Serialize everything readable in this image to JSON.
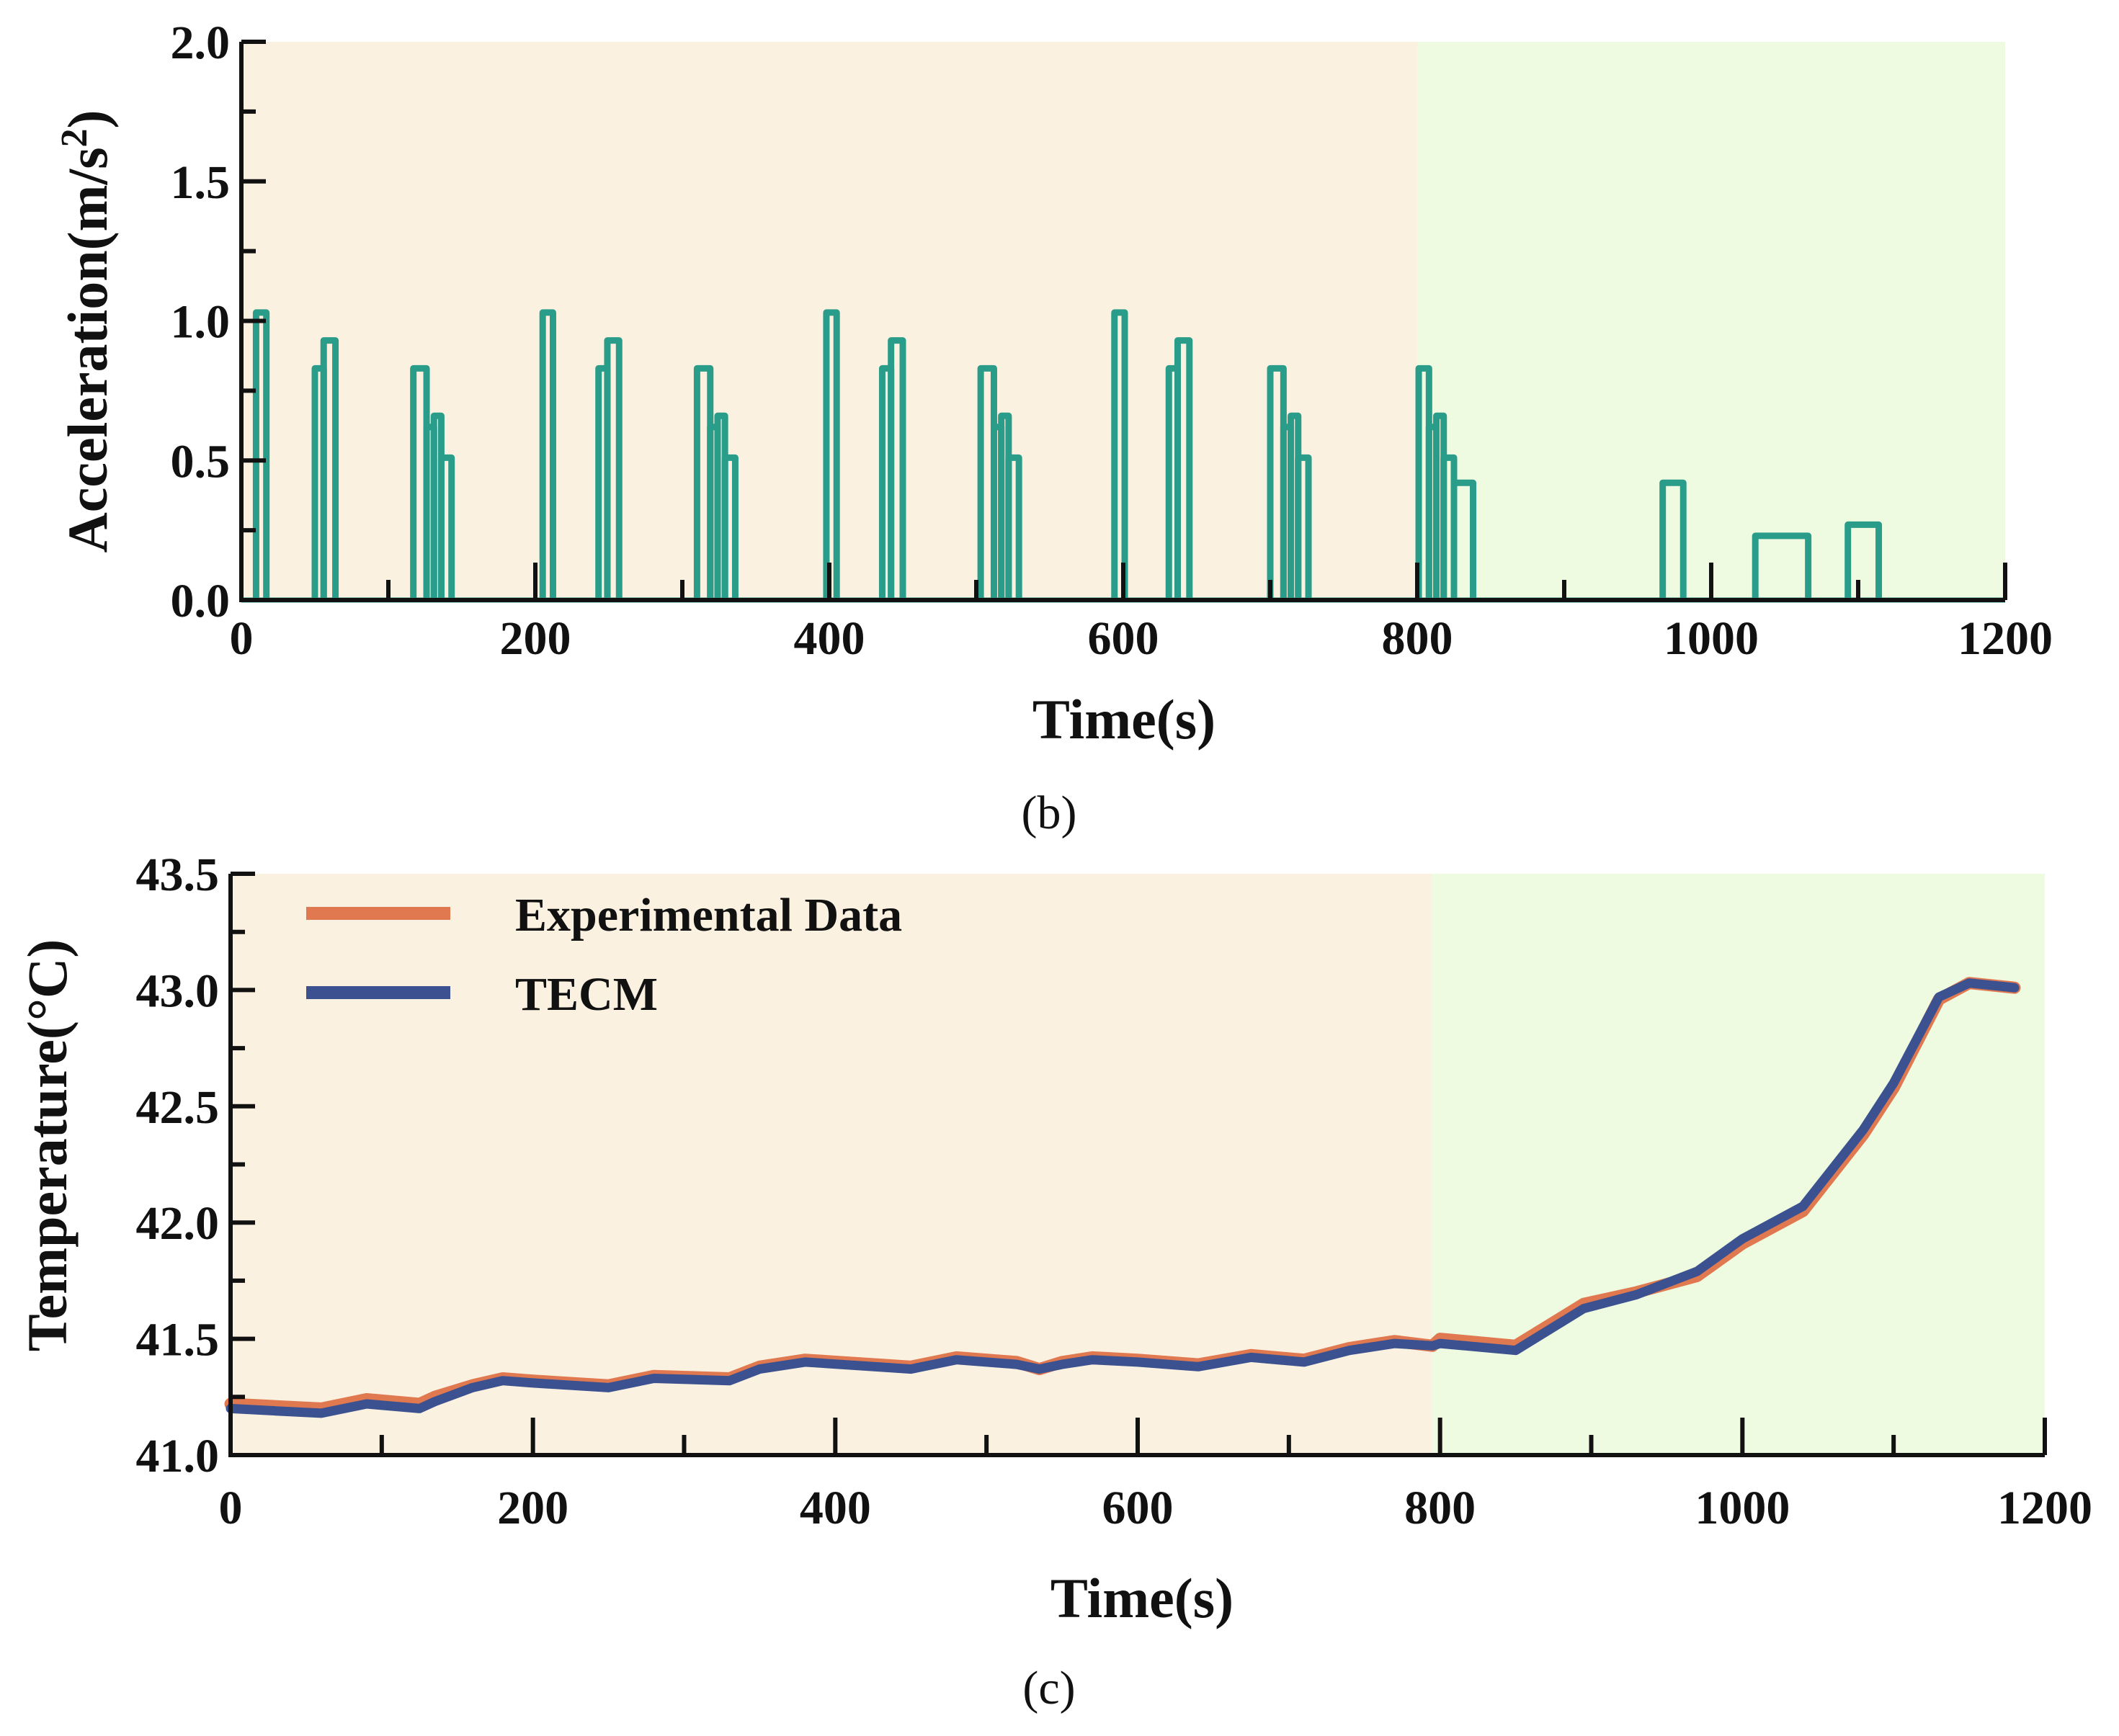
{
  "colors": {
    "region_a": "#fbf1e0",
    "region_b": "#eefbe1",
    "acceleration": "#2a9d8a",
    "experimental": "#e07850",
    "tecm": "#3c5290",
    "axis": "#111111"
  },
  "chart_data": [
    {
      "id": "acceleration-chart",
      "type": "line",
      "panel_label": "(b)",
      "title": "",
      "xlabel": "Time(s)",
      "ylabel_main": "Acceleration(m/s",
      "ylabel_sup": "2",
      "ylabel_tail": ")",
      "xlim": [
        0,
        1200
      ],
      "ylim": [
        0,
        2.0
      ],
      "xticks": [
        0,
        200,
        400,
        600,
        800,
        1000,
        1200
      ],
      "xtick_labels": [
        "0",
        "200",
        "400",
        "600",
        "800",
        "1000",
        "1200"
      ],
      "yticks": [
        0.0,
        0.5,
        1.0,
        1.5,
        2.0
      ],
      "ytick_labels": [
        "0.0",
        "0.5",
        "1.0",
        "1.5",
        "2.0"
      ],
      "shaded_regions": [
        {
          "name": "phase-1",
          "x_start": 0,
          "x_end": 800,
          "color_key": "region_a"
        },
        {
          "name": "phase-2",
          "x_start": 800,
          "x_end": 1200,
          "color_key": "region_b"
        }
      ],
      "series": [
        {
          "name": "Acceleration",
          "color_key": "acceleration",
          "pulses": [
            {
              "start": 10,
              "end": 17,
              "value": 1.03
            },
            {
              "start": 50,
              "end": 56,
              "value": 0.83
            },
            {
              "start": 56,
              "end": 64,
              "value": 0.93
            },
            {
              "start": 117,
              "end": 126,
              "value": 0.83
            },
            {
              "start": 126,
              "end": 131,
              "value": 0.62
            },
            {
              "start": 131,
              "end": 136,
              "value": 0.66
            },
            {
              "start": 136,
              "end": 143,
              "value": 0.51
            },
            {
              "start": 205,
              "end": 212,
              "value": 1.03
            },
            {
              "start": 243,
              "end": 249,
              "value": 0.83
            },
            {
              "start": 249,
              "end": 257,
              "value": 0.93
            },
            {
              "start": 310,
              "end": 319,
              "value": 0.83
            },
            {
              "start": 319,
              "end": 324,
              "value": 0.62
            },
            {
              "start": 324,
              "end": 329,
              "value": 0.66
            },
            {
              "start": 329,
              "end": 336,
              "value": 0.51
            },
            {
              "start": 398,
              "end": 405,
              "value": 1.03
            },
            {
              "start": 436,
              "end": 442,
              "value": 0.83
            },
            {
              "start": 442,
              "end": 450,
              "value": 0.93
            },
            {
              "start": 503,
              "end": 512,
              "value": 0.83
            },
            {
              "start": 512,
              "end": 517,
              "value": 0.62
            },
            {
              "start": 517,
              "end": 522,
              "value": 0.66
            },
            {
              "start": 522,
              "end": 529,
              "value": 0.51
            },
            {
              "start": 594,
              "end": 601,
              "value": 1.03
            },
            {
              "start": 631,
              "end": 637,
              "value": 0.83
            },
            {
              "start": 637,
              "end": 645,
              "value": 0.93
            },
            {
              "start": 700,
              "end": 709,
              "value": 0.83
            },
            {
              "start": 709,
              "end": 714,
              "value": 0.62
            },
            {
              "start": 714,
              "end": 719,
              "value": 0.66
            },
            {
              "start": 719,
              "end": 726,
              "value": 0.51
            },
            {
              "start": 801,
              "end": 808,
              "value": 0.83
            },
            {
              "start": 808,
              "end": 813,
              "value": 0.62
            },
            {
              "start": 813,
              "end": 818,
              "value": 0.66
            },
            {
              "start": 818,
              "end": 825,
              "value": 0.51
            },
            {
              "start": 825,
              "end": 838,
              "value": 0.42
            },
            {
              "start": 967,
              "end": 981,
              "value": 0.42
            },
            {
              "start": 1030,
              "end": 1066,
              "value": 0.23
            },
            {
              "start": 1093,
              "end": 1114,
              "value": 0.27
            }
          ]
        }
      ]
    },
    {
      "id": "temperature-chart",
      "type": "line",
      "panel_label": "(c)",
      "title": "",
      "xlabel": "Time(s)",
      "ylabel": "Temperature(°C)",
      "xlim": [
        0,
        1200
      ],
      "ylim": [
        41.0,
        43.5
      ],
      "xticks": [
        0,
        200,
        400,
        600,
        800,
        1000,
        1200
      ],
      "xtick_labels": [
        "0",
        "200",
        "400",
        "600",
        "800",
        "1000",
        "1200"
      ],
      "yticks": [
        41.0,
        41.5,
        42.0,
        42.5,
        43.0,
        43.5
      ],
      "ytick_labels": [
        "41.0",
        "41.5",
        "42.0",
        "42.5",
        "43.0",
        "43.5"
      ],
      "shaded_regions": [
        {
          "name": "phase-1",
          "x_start": 0,
          "x_end": 795,
          "color_key": "region_a"
        },
        {
          "name": "phase-2",
          "x_start": 795,
          "x_end": 1200,
          "color_key": "region_b"
        }
      ],
      "legend": {
        "position": "top-left",
        "entries": [
          {
            "label": "Experimental Data",
            "color_key": "experimental"
          },
          {
            "label": "TECM",
            "color_key": "tecm"
          }
        ]
      },
      "series": [
        {
          "name": "Experimental Data",
          "color_key": "experimental",
          "x": [
            0,
            30,
            60,
            90,
            125,
            135,
            160,
            180,
            200,
            250,
            280,
            330,
            350,
            380,
            450,
            480,
            520,
            535,
            550,
            570,
            600,
            640,
            675,
            710,
            740,
            770,
            795,
            800,
            850,
            895,
            930,
            970,
            1000,
            1040,
            1080,
            1100,
            1130,
            1150,
            1180
          ],
          "y": [
            41.22,
            41.21,
            41.2,
            41.24,
            41.22,
            41.25,
            41.3,
            41.33,
            41.32,
            41.3,
            41.34,
            41.33,
            41.38,
            41.41,
            41.38,
            41.42,
            41.4,
            41.37,
            41.4,
            41.42,
            41.41,
            41.39,
            41.43,
            41.41,
            41.46,
            41.49,
            41.47,
            41.5,
            41.47,
            41.65,
            41.7,
            41.77,
            41.91,
            42.05,
            42.38,
            42.58,
            42.96,
            43.03,
            43.01
          ]
        },
        {
          "name": "TECM",
          "color_key": "tecm",
          "x": [
            0,
            30,
            60,
            90,
            125,
            135,
            160,
            180,
            200,
            250,
            280,
            330,
            350,
            380,
            450,
            480,
            520,
            535,
            550,
            570,
            600,
            640,
            675,
            710,
            740,
            770,
            795,
            800,
            850,
            895,
            930,
            970,
            1000,
            1040,
            1080,
            1100,
            1130,
            1150,
            1180
          ],
          "y": [
            41.2,
            41.19,
            41.18,
            41.22,
            41.2,
            41.23,
            41.29,
            41.32,
            41.31,
            41.29,
            41.33,
            41.32,
            41.37,
            41.4,
            41.37,
            41.41,
            41.39,
            41.37,
            41.39,
            41.41,
            41.4,
            41.38,
            41.42,
            41.4,
            41.45,
            41.48,
            41.47,
            41.48,
            41.45,
            41.63,
            41.69,
            41.79,
            41.93,
            42.07,
            42.4,
            42.6,
            42.97,
            43.03,
            43.01
          ]
        }
      ]
    }
  ]
}
